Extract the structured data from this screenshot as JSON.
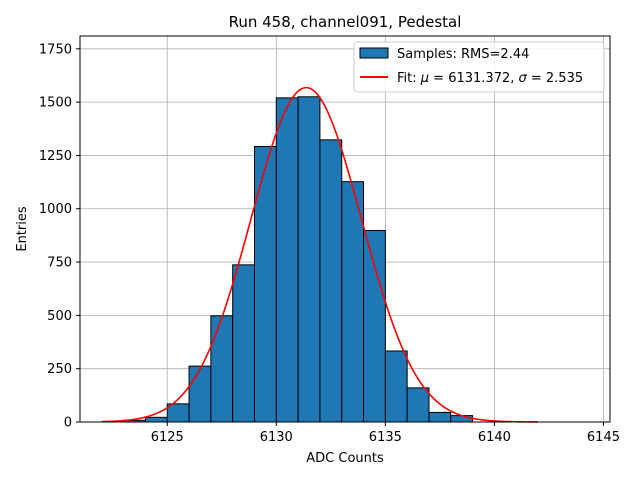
{
  "chart_data": {
    "type": "bar",
    "title": "Run 458, channel091, Pedestal",
    "xlabel": "ADC Counts",
    "ylabel": "Entries",
    "xlim": [
      6121,
      6145.3
    ],
    "ylim": [
      0,
      1810
    ],
    "xticks": [
      6125,
      6130,
      6135,
      6140,
      6145
    ],
    "yticks": [
      0,
      250,
      500,
      750,
      1000,
      1250,
      1500,
      1750
    ],
    "grid": true,
    "legend_position": "top-right",
    "bin_width": 1,
    "histogram": {
      "name": "Samples: RMS=2.44",
      "color": "#1f77b4",
      "edgecolor": "#000000",
      "bin_starts": [
        6123,
        6124,
        6125,
        6126,
        6127,
        6128,
        6129,
        6130,
        6131,
        6132,
        6133,
        6134,
        6135,
        6136,
        6137,
        6138
      ],
      "values": [
        8,
        22,
        85,
        262,
        498,
        737,
        1292,
        1520,
        1525,
        1323,
        1127,
        898,
        333,
        160,
        45,
        30
      ]
    },
    "fit": {
      "name_prefix": "Fit: ",
      "name_mu_symbol": "μ",
      "name_mid": " = 6131.372, ",
      "name_sigma_symbol": "σ",
      "name_suffix": " = 2.535",
      "color": "#ff0000",
      "mu": 6131.372,
      "sigma": 2.535,
      "amplitude": 1568,
      "x_range": [
        6122,
        6142
      ]
    }
  }
}
